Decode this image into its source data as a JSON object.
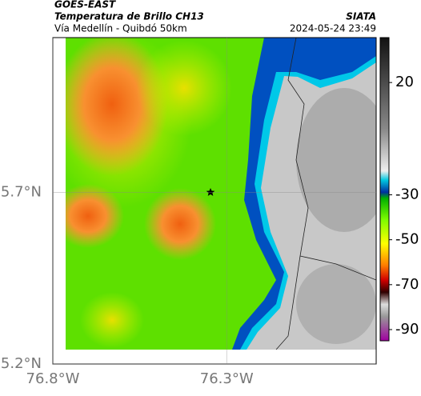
{
  "header": {
    "product": "GOES-EAST",
    "title": "Temperatura de Brillo CH13",
    "subtitle": "Vía Medellín - Quibdó 50km",
    "source": "SIATA",
    "timestamp": "2024-05-24 23:49"
  },
  "map": {
    "xlim": [
      -76.8,
      -75.87
    ],
    "ylim": [
      5.2,
      6.15
    ],
    "xticks": [
      {
        "value": -76.8,
        "label": "76.8°W"
      },
      {
        "value": -76.3,
        "label": "76.3°W"
      }
    ],
    "yticks": [
      {
        "value": 5.2,
        "label": "5.2°N"
      },
      {
        "value": 5.7,
        "label": "5.7°N"
      }
    ]
  },
  "colorbar": {
    "lim": [
      -95,
      40
    ],
    "ticks": [
      20,
      -30,
      -50,
      -70,
      -90
    ]
  }
}
